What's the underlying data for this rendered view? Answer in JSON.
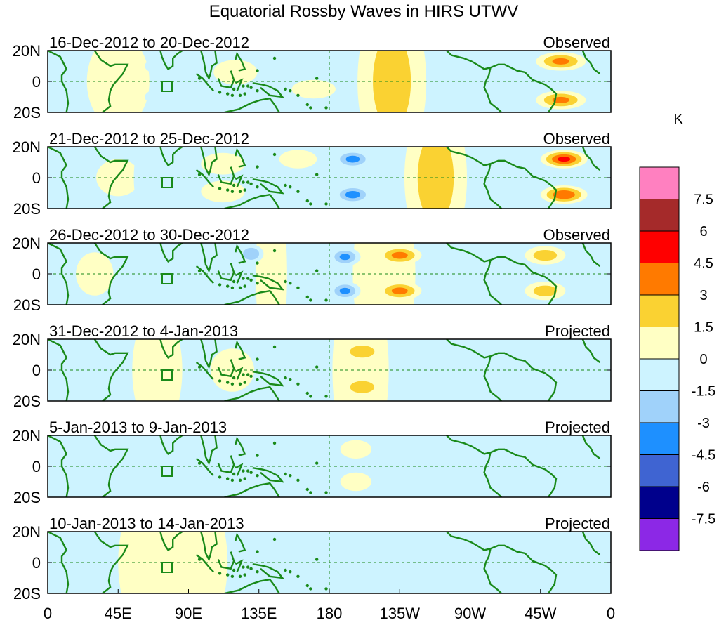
{
  "chart_data": {
    "type": "heatmap",
    "title": "Equatorial Rossby Waves in HIRS UTWV",
    "units_label": "K",
    "x_ticks": [
      "0",
      "45E",
      "90E",
      "135E",
      "180",
      "135W",
      "90W",
      "45W",
      "0"
    ],
    "y_ticks": [
      "20N",
      "0",
      "20S"
    ],
    "lat_range": [
      -20,
      20
    ],
    "lon_range": [
      0,
      360
    ],
    "colorbar": {
      "levels": [
        "7.5",
        "6",
        "4.5",
        "3",
        "1.5",
        "0",
        "-1.5",
        "-3",
        "-4.5",
        "-6",
        "-7.5"
      ],
      "colors": [
        "#ff80c0",
        "#a52a2a",
        "#ff0000",
        "#ff7a00",
        "#fad232",
        "#ffffc4",
        "#cdf3ff",
        "#a0d2fa",
        "#1e90ff",
        "#3f64d2",
        "#00008c",
        "#8c28e6"
      ]
    },
    "land_color": "#1a8a1a",
    "panels": [
      {
        "period": "16-Dec-2012 to 20-Dec-2012",
        "kind": "Observed",
        "anomalies": [
          {
            "lon": 220,
            "lat": 0,
            "wlon": 22,
            "wlat": 55,
            "value": 2.6
          },
          {
            "lon": 328,
            "lat": 13,
            "wlon": 16,
            "wlat": 6,
            "value": 3.8
          },
          {
            "lon": 328,
            "lat": -12,
            "wlon": 16,
            "wlat": 6,
            "value": 3.8
          },
          {
            "lon": 241,
            "lat": 0,
            "wlon": 12,
            "wlat": 10,
            "value": -1.6
          },
          {
            "lon": 120,
            "lat": 6,
            "wlon": 14,
            "wlat": 8,
            "value": 1.6
          },
          {
            "lon": 170,
            "lat": -5,
            "wlon": 14,
            "wlat": 6,
            "value": 1.2
          },
          {
            "lon": 82,
            "lat": 10,
            "wlon": 20,
            "wlat": 7,
            "value": -1.4
          },
          {
            "lon": 82,
            "lat": -10,
            "wlon": 20,
            "wlat": 7,
            "value": -1.4
          },
          {
            "lon": 195,
            "lat": 12,
            "wlon": 18,
            "wlat": 7,
            "value": -1.3
          },
          {
            "lon": 300,
            "lat": 0,
            "wlon": 18,
            "wlat": 20,
            "value": -1.0
          },
          {
            "lon": 45,
            "lat": 0,
            "wlon": 20,
            "wlat": 30,
            "value": 0.8
          }
        ]
      },
      {
        "period": "21-Dec-2012 to 25-Dec-2012",
        "kind": "Observed",
        "anomalies": [
          {
            "lon": 330,
            "lat": 12,
            "wlon": 15,
            "wlat": 6,
            "value": 5.4
          },
          {
            "lon": 330,
            "lat": -11,
            "wlon": 15,
            "wlat": 6,
            "value": 4.9
          },
          {
            "lon": 248,
            "lat": 0,
            "wlon": 20,
            "wlat": 50,
            "value": 2.8
          },
          {
            "lon": 195,
            "lat": 12,
            "wlon": 12,
            "wlat": 6,
            "value": -4.0
          },
          {
            "lon": 195,
            "lat": -11,
            "wlon": 12,
            "wlat": 6,
            "value": -4.2
          },
          {
            "lon": 112,
            "lat": 9,
            "wlon": 14,
            "wlat": 7,
            "value": 2.0
          },
          {
            "lon": 112,
            "lat": -9,
            "wlon": 14,
            "wlat": 7,
            "value": 1.8
          },
          {
            "lon": 160,
            "lat": 12,
            "wlon": 12,
            "wlat": 6,
            "value": 1.5
          },
          {
            "lon": 282,
            "lat": 8,
            "wlon": 16,
            "wlat": 8,
            "value": -2.0
          },
          {
            "lon": 75,
            "lat": 0,
            "wlon": 20,
            "wlat": 40,
            "value": -1.2
          },
          {
            "lon": 45,
            "lat": 0,
            "wlon": 14,
            "wlat": 12,
            "value": 1.1
          }
        ]
      },
      {
        "period": "26-Dec-2012 to 30-Dec-2012",
        "kind": "Observed",
        "anomalies": [
          {
            "lon": 225,
            "lat": 12,
            "wlon": 14,
            "wlat": 6,
            "value": 4.0
          },
          {
            "lon": 225,
            "lat": -11,
            "wlon": 14,
            "wlat": 6,
            "value": 4.0
          },
          {
            "lon": 215,
            "lat": 0,
            "wlon": 20,
            "wlat": 60,
            "value": 2.0
          },
          {
            "lon": 190,
            "lat": 11,
            "wlon": 10,
            "wlat": 6,
            "value": -3.8
          },
          {
            "lon": 190,
            "lat": -11,
            "wlon": 10,
            "wlat": 6,
            "value": -3.8
          },
          {
            "lon": 130,
            "lat": 13,
            "wlon": 8,
            "wlat": 6,
            "value": -3.5
          },
          {
            "lon": 143,
            "lat": 0,
            "wlon": 10,
            "wlat": 60,
            "value": 2.2
          },
          {
            "lon": 318,
            "lat": 12,
            "wlon": 13,
            "wlat": 6,
            "value": 2.8
          },
          {
            "lon": 318,
            "lat": -11,
            "wlon": 13,
            "wlat": 6,
            "value": 2.8
          },
          {
            "lon": 270,
            "lat": 0,
            "wlon": 18,
            "wlat": 60,
            "value": -1.8
          },
          {
            "lon": 70,
            "lat": -10,
            "wlon": 22,
            "wlat": 8,
            "value": -1.6
          },
          {
            "lon": 30,
            "lat": 0,
            "wlon": 12,
            "wlat": 14,
            "value": 1.0
          }
        ]
      },
      {
        "period": "31-Dec-2012 to 4-Jan-2013",
        "kind": "Projected",
        "anomalies": [
          {
            "lon": 201,
            "lat": 12,
            "wlon": 12,
            "wlat": 6,
            "value": 3.6
          },
          {
            "lon": 201,
            "lat": -11,
            "wlon": 12,
            "wlat": 6,
            "value": 3.5
          },
          {
            "lon": 200,
            "lat": 0,
            "wlon": 18,
            "wlat": 60,
            "value": 1.2
          },
          {
            "lon": 118,
            "lat": 0,
            "wlon": 14,
            "wlat": 14,
            "value": 2.0
          },
          {
            "lon": 245,
            "lat": 0,
            "wlon": 16,
            "wlat": 14,
            "value": -1.6
          },
          {
            "lon": 160,
            "lat": -8,
            "wlon": 14,
            "wlat": 7,
            "value": -1.3
          },
          {
            "lon": 40,
            "lat": -3,
            "wlon": 14,
            "wlat": 10,
            "value": -1.2
          },
          {
            "lon": 70,
            "lat": 0,
            "wlon": 16,
            "wlat": 40,
            "value": 0.8
          }
        ]
      },
      {
        "period": "5-Jan-2013 to 9-Jan-2013",
        "kind": "Projected",
        "anomalies": [
          {
            "lon": 197,
            "lat": 11,
            "wlon": 10,
            "wlat": 6,
            "value": 1.3
          },
          {
            "lon": 197,
            "lat": -10,
            "wlon": 10,
            "wlat": 6,
            "value": 1.2
          },
          {
            "lon": 75,
            "lat": 0,
            "wlon": 26,
            "wlat": 60,
            "value": 0.7
          },
          {
            "lon": 210,
            "lat": 0,
            "wlon": 30,
            "wlat": 60,
            "value": 0.4
          },
          {
            "lon": 280,
            "lat": 0,
            "wlon": 40,
            "wlat": 60,
            "value": -0.8
          },
          {
            "lon": 150,
            "lat": 0,
            "wlon": 18,
            "wlat": 60,
            "value": -0.7
          },
          {
            "lon": 15,
            "lat": 0,
            "wlon": 20,
            "wlat": 60,
            "value": 0.5
          }
        ]
      },
      {
        "period": "10-Jan-2013 to 14-Jan-2013",
        "kind": "Projected",
        "anomalies": [
          {
            "lon": 80,
            "lat": 0,
            "wlon": 35,
            "wlat": 60,
            "value": 0.8
          },
          {
            "lon": 20,
            "lat": 0,
            "wlon": 22,
            "wlat": 60,
            "value": 0.6
          },
          {
            "lon": 170,
            "lat": 0,
            "wlon": 35,
            "wlat": 60,
            "value": 0.5
          },
          {
            "lon": 280,
            "lat": 0,
            "wlon": 45,
            "wlat": 60,
            "value": -0.7
          },
          {
            "lon": 230,
            "lat": 12,
            "wlon": 12,
            "wlat": 6,
            "value": -0.6
          }
        ]
      }
    ]
  }
}
